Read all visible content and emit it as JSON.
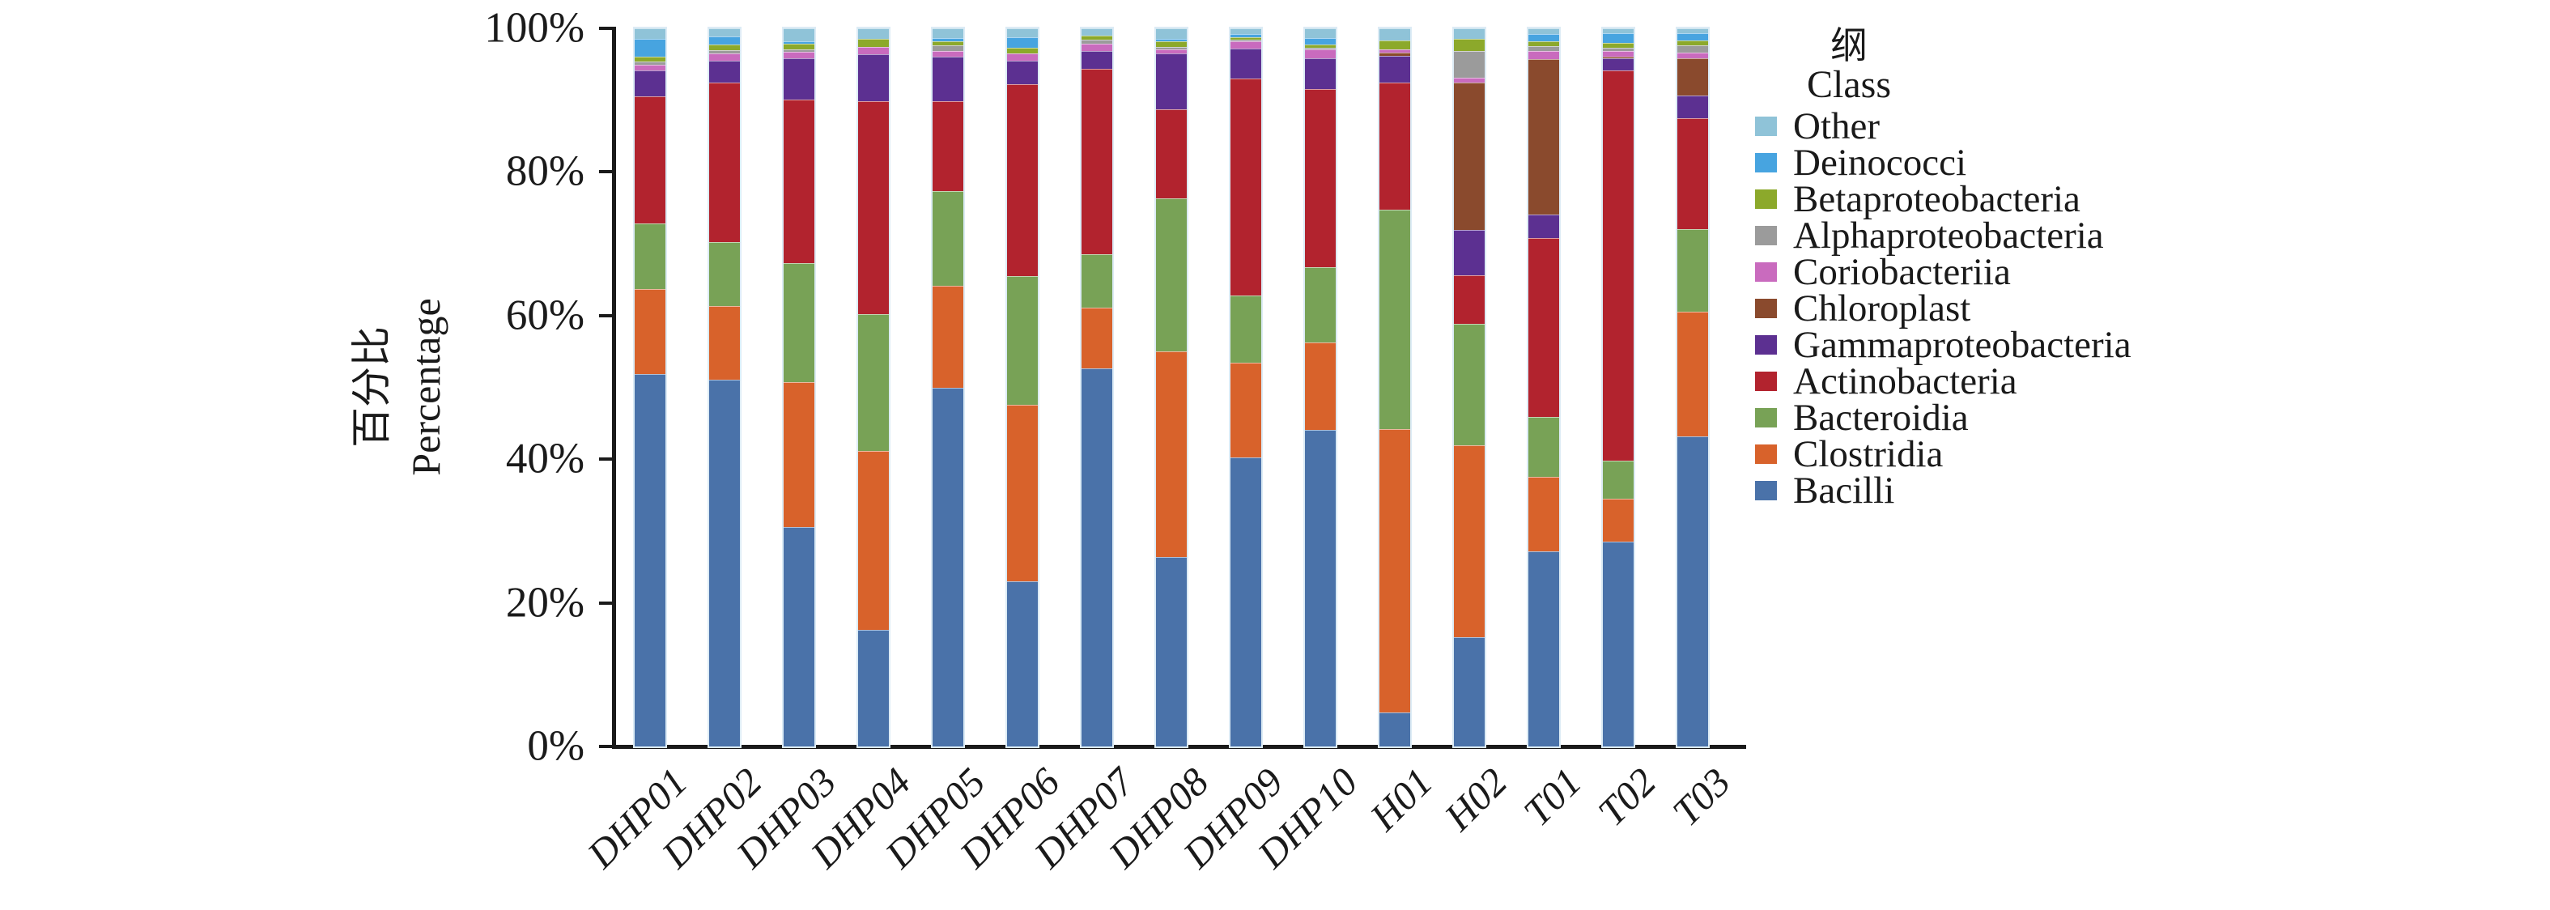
{
  "figure": {
    "y_axis": {
      "title_zh": "百分比",
      "title_en": "Percentage",
      "tick_labels": [
        "0%",
        "20%",
        "40%",
        "60%",
        "80%",
        "100%"
      ],
      "tick_values": [
        0,
        20,
        40,
        60,
        80,
        100
      ]
    },
    "legend": {
      "title_zh": "纲",
      "title_en": "Class"
    }
  },
  "chart_data": {
    "type": "bar",
    "stacked": true,
    "unit": "percent",
    "title": "",
    "xlabel": "",
    "ylabel": "百分比 Percentage",
    "ylim": [
      0,
      100
    ],
    "legend_position": "right",
    "grid": false,
    "categories": [
      "DHP01",
      "DHP02",
      "DHP03",
      "DHP04",
      "DHP05",
      "DHP06",
      "DHP07",
      "DHP08",
      "DHP09",
      "DHP10",
      "H01",
      "H02",
      "T01",
      "T02",
      "T03"
    ],
    "stack_order_bottom_to_top": [
      "Bacilli",
      "Clostridia",
      "Bacteroidia",
      "Actinobacteria",
      "Gammaproteobacteria",
      "Chloroplast",
      "Coriobacteriia",
      "Alphaproteobacteria",
      "Betaproteobacteria",
      "Deinococci",
      "Other"
    ],
    "series": [
      {
        "name": "Other",
        "color": "#8fc3d8",
        "values": [
          1.4,
          1.1,
          1.8,
          1.5,
          1.3,
          1.2,
          1.0,
          1.5,
          0.8,
          1.3,
          1.7,
          1.5,
          0.8,
          0.7,
          0.7
        ]
      },
      {
        "name": "Deinococci",
        "color": "#47a4e0",
        "values": [
          2.5,
          1.2,
          0.3,
          0.0,
          0.5,
          1.5,
          0.0,
          0.3,
          0.4,
          0.9,
          0.0,
          0.0,
          1.0,
          1.3,
          1.0
        ]
      },
      {
        "name": "Betaproteobacteria",
        "color": "#8ca92b",
        "values": [
          0.7,
          0.7,
          0.8,
          1.1,
          0.6,
          0.8,
          0.6,
          0.8,
          0.4,
          0.5,
          1.2,
          1.6,
          0.7,
          0.7,
          0.7
        ]
      },
      {
        "name": "Alphaproteobacteria",
        "color": "#9b9b9b",
        "values": [
          0.5,
          0.5,
          0.4,
          0.0,
          0.7,
          0.0,
          0.5,
          0.3,
          0.2,
          0.2,
          0.0,
          3.8,
          0.7,
          0.5,
          1.0
        ]
      },
      {
        "name": "Coriobacteriia",
        "color": "#c96bbe",
        "values": [
          0.8,
          1.0,
          0.9,
          1.0,
          0.8,
          1.0,
          1.1,
          0.6,
          1.0,
          1.3,
          0.5,
          0.6,
          1.1,
          0.7,
          0.8
        ]
      },
      {
        "name": "Chloroplast",
        "color": "#8a4a2d",
        "values": [
          0.0,
          0.0,
          0.0,
          0.0,
          0.0,
          0.0,
          0.0,
          0.0,
          0.0,
          0.0,
          0.4,
          20.6,
          21.6,
          0.3,
          5.2
        ]
      },
      {
        "name": "Gammaproteobacteria",
        "color": "#5c3091",
        "values": [
          3.6,
          3.0,
          5.7,
          6.5,
          6.3,
          3.3,
          2.4,
          7.8,
          4.2,
          4.3,
          3.7,
          6.3,
          3.3,
          1.7,
          3.1
        ]
      },
      {
        "name": "Actinobacteria",
        "color": "#b2232e",
        "values": [
          17.7,
          22.3,
          22.8,
          29.7,
          12.5,
          26.7,
          25.9,
          12.4,
          30.2,
          24.7,
          17.8,
          6.8,
          24.9,
          54.3,
          15.5
        ]
      },
      {
        "name": "Bacteroidia",
        "color": "#78a256",
        "values": [
          9.1,
          8.9,
          16.6,
          19.0,
          13.2,
          17.9,
          7.4,
          21.3,
          9.4,
          10.5,
          30.5,
          16.9,
          8.4,
          5.3,
          11.4
        ]
      },
      {
        "name": "Clostridia",
        "color": "#d8622b",
        "values": [
          11.8,
          10.2,
          20.2,
          25.0,
          14.2,
          24.6,
          8.5,
          28.6,
          13.2,
          12.2,
          39.5,
          26.7,
          10.3,
          6.0,
          17.4
        ]
      },
      {
        "name": "Bacilli",
        "color": "#4a72a9",
        "values": [
          51.9,
          51.1,
          30.5,
          16.2,
          49.9,
          23.0,
          52.6,
          26.4,
          40.2,
          44.1,
          4.7,
          15.2,
          27.2,
          28.5,
          43.2
        ]
      }
    ]
  }
}
